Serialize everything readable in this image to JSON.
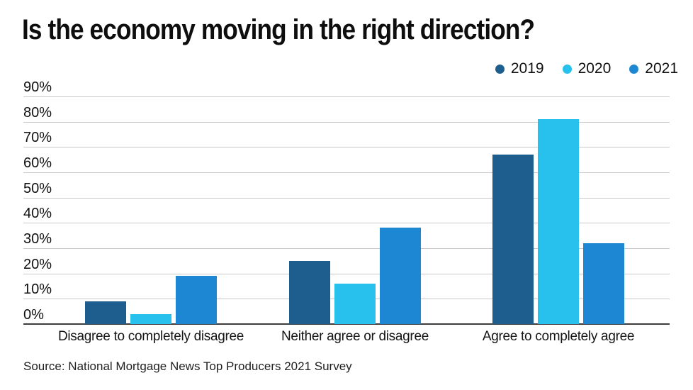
{
  "title": "Is the economy moving in the right direction?",
  "source": "Source: National Mortgage News Top Producers 2021 Survey",
  "colors": {
    "series_2019": "#1d5e8f",
    "series_2020": "#28c0ed",
    "series_2021": "#1e87d3",
    "gridline": "#c9c9c9",
    "baseline": "#3c3c3c"
  },
  "chart_data": {
    "type": "bar",
    "title": "Is the economy moving in the right direction?",
    "categories": [
      "Disagree to completely disagree",
      "Neither agree or disagree",
      "Agree to completely agree"
    ],
    "series": [
      {
        "name": "2019",
        "color": "#1d5e8f",
        "values": [
          9,
          25,
          67
        ]
      },
      {
        "name": "2020",
        "color": "#28c0ed",
        "values": [
          4,
          16,
          81
        ]
      },
      {
        "name": "2021",
        "color": "#1e87d3",
        "values": [
          19,
          38,
          32
        ]
      }
    ],
    "xlabel": "",
    "ylabel": "",
    "ylim": [
      0,
      90
    ],
    "y_ticks": [
      "90%",
      "80%",
      "70%",
      "60%",
      "50%",
      "40%",
      "30%",
      "20%",
      "10%",
      "0%"
    ],
    "grid": true,
    "legend_position": "top-right"
  }
}
